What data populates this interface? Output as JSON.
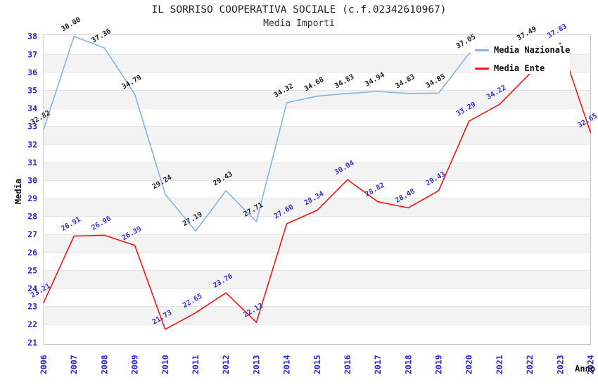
{
  "chart_data": {
    "type": "line",
    "title": "IL SORRISO COOPERATIVA SOCIALE (c.f.02342610967)",
    "subtitle": "Media Importi",
    "xlabel": "Anno",
    "ylabel": "Media",
    "ylim": [
      21,
      38
    ],
    "grid": "alternating horizontal bands, one unit tall",
    "legend_position": "top-right",
    "band_color": "#F3F3F3",
    "gridline_color": "#E3E3E3",
    "border_color": "#C9C9C9",
    "tick_label_color": "#2929CC",
    "x": [
      2006,
      2007,
      2008,
      2009,
      2010,
      2011,
      2012,
      2013,
      2014,
      2015,
      2016,
      2017,
      2018,
      2019,
      2020,
      2021,
      2022,
      2023,
      2024
    ],
    "series": [
      {
        "name": "Media Nazionale",
        "color": "#84B3E4",
        "label_color": "#222222",
        "values": [
          32.82,
          38.0,
          37.36,
          34.79,
          29.24,
          27.19,
          29.43,
          27.71,
          34.32,
          34.68,
          34.83,
          34.94,
          34.83,
          34.85,
          37.05,
          null,
          37.49,
          null,
          null
        ]
      },
      {
        "name": "Media Ente",
        "color": "#F81414",
        "label_color": "#3333CC",
        "values": [
          23.21,
          26.91,
          26.96,
          26.39,
          21.73,
          22.65,
          23.76,
          22.12,
          27.6,
          28.34,
          30.04,
          28.82,
          28.48,
          29.43,
          33.29,
          34.22,
          null,
          37.63,
          32.65
        ]
      }
    ]
  }
}
